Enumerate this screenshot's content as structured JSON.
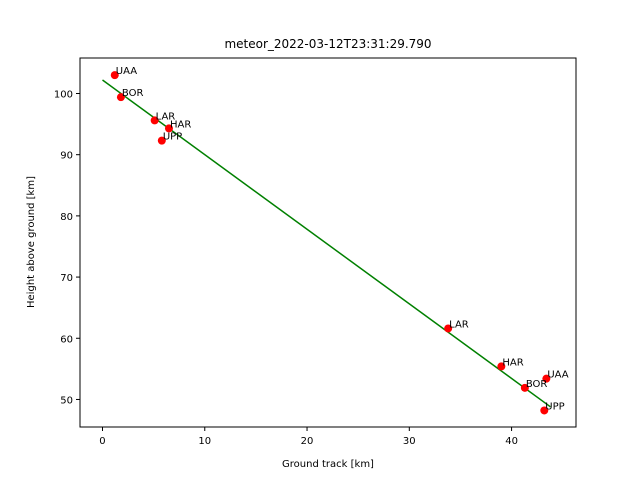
{
  "chart_data": {
    "type": "scatter",
    "title": "meteor_2022-03-12T23:31:29.790",
    "xlabel": "Ground track [km]",
    "ylabel": "Height above ground [km]",
    "xlim": [
      -2.2,
      46.3
    ],
    "ylim": [
      45.5,
      105.8
    ],
    "xticks": [
      0,
      10,
      20,
      30,
      40
    ],
    "yticks": [
      50,
      60,
      70,
      80,
      90,
      100
    ],
    "grid": false,
    "points": [
      {
        "label": "UAA",
        "x": 1.2,
        "y": 103.0
      },
      {
        "label": "BOR",
        "x": 1.8,
        "y": 99.4
      },
      {
        "label": "LAR",
        "x": 5.1,
        "y": 95.6
      },
      {
        "label": "HAR",
        "x": 6.5,
        "y": 94.3
      },
      {
        "label": "UPP",
        "x": 5.8,
        "y": 92.3
      },
      {
        "label": "LAR",
        "x": 33.8,
        "y": 61.6
      },
      {
        "label": "HAR",
        "x": 39.0,
        "y": 55.4
      },
      {
        "label": "UAA",
        "x": 43.4,
        "y": 53.4
      },
      {
        "label": "BOR",
        "x": 41.3,
        "y": 51.9
      },
      {
        "label": "UPP",
        "x": 43.2,
        "y": 48.2
      }
    ],
    "fit_line": {
      "x": [
        0,
        43.8
      ],
      "y": [
        102.2,
        48.8
      ]
    },
    "colors": {
      "points": "#ff0000",
      "line": "#008000"
    }
  }
}
